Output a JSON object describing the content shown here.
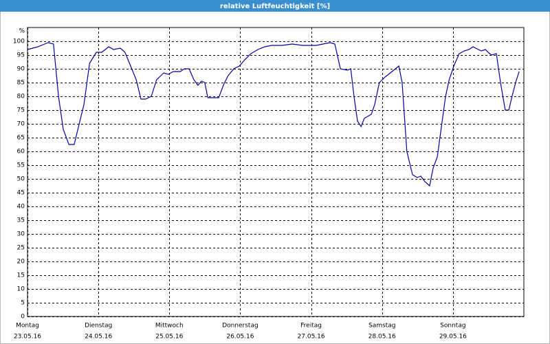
{
  "chart_data": {
    "type": "line",
    "title": "relative Luftfeuchtigkeit [%]",
    "y_unit": "%",
    "xlim": [
      0,
      168
    ],
    "ylim": [
      0,
      100
    ],
    "xticks": [
      {
        "value": 0,
        "label": "Montag"
      },
      {
        "value": 24,
        "label": "Dienstag"
      },
      {
        "value": 48,
        "label": "Mittwoch"
      },
      {
        "value": 72,
        "label": "Donnerstag"
      },
      {
        "value": 96,
        "label": "Freitag"
      },
      {
        "value": 120,
        "label": "Samstag"
      },
      {
        "value": 144,
        "label": "Sonntag"
      }
    ],
    "xtick_dates": [
      "23.05.16",
      "24.05.16",
      "25.05.16",
      "26.05.16",
      "27.05.16",
      "28.05.16",
      "29.05.16"
    ],
    "yticks": [
      0,
      5,
      10,
      15,
      20,
      25,
      30,
      35,
      40,
      45,
      50,
      55,
      60,
      65,
      70,
      75,
      80,
      85,
      90,
      95,
      100
    ],
    "grid": true,
    "series": [
      {
        "name": "relative Luftfeuchtigkeit",
        "color": "#0000a0",
        "x": [
          0,
          3.5,
          5.8,
          7.0,
          8.8,
          10.5,
          12.1,
          14.0,
          15.8,
          17.5,
          19.1,
          21.0,
          23.3,
          25.1,
          27.5,
          29.1,
          31.4,
          33.0,
          34.9,
          36.8,
          38.4,
          40.0,
          41.9,
          43.7,
          46.1,
          47.7,
          49.3,
          51.7,
          53.1,
          54.7,
          56.3,
          57.7,
          58.9,
          60.0,
          61.0,
          62.8,
          64.7,
          66.3,
          67.9,
          69.8,
          71.7,
          73.3,
          75.6,
          78.0,
          80.3,
          82.6,
          86.1,
          89.6,
          93.1,
          97.7,
          100.0,
          102.4,
          104.0,
          105.9,
          108.2,
          109.4,
          110.5,
          111.7,
          112.9,
          114.0,
          116.4,
          117.5,
          119.1,
          121.0,
          122.2,
          124.5,
          125.7,
          126.8,
          128.4,
          130.3,
          131.9,
          133.1,
          134.5,
          136.1,
          137.3,
          138.7,
          139.6,
          141.5,
          142.7,
          144.3,
          146.1,
          147.8,
          149.4,
          150.8,
          151.7,
          153.6,
          155.0,
          155.9,
          157.0,
          158.7,
          160.1,
          161.7,
          162.9,
          164.0,
          165.2,
          166.4
        ],
        "values": [
          97,
          98,
          99,
          99.5,
          99,
          80,
          68,
          62.5,
          62.5,
          70,
          77,
          92,
          96,
          96,
          98,
          97,
          97.5,
          96,
          91,
          86,
          79,
          79,
          80,
          86,
          88.5,
          88,
          89,
          89,
          90,
          90,
          86,
          84,
          85.5,
          85,
          79.5,
          79.5,
          79.5,
          84,
          87.5,
          90,
          91,
          93,
          95.5,
          97,
          98,
          98.5,
          98.5,
          99,
          98.5,
          98.5,
          99,
          99.5,
          99,
          90,
          89.5,
          90,
          80,
          71,
          69,
          72,
          73.5,
          77,
          85,
          87,
          88,
          90,
          91,
          85,
          60,
          51.5,
          50.5,
          51,
          49,
          47.5,
          54,
          58,
          65,
          80,
          86,
          91,
          95.5,
          96.5,
          97,
          98,
          97.5,
          96.5,
          97,
          96,
          95,
          95.5,
          85,
          75,
          75,
          80,
          85,
          89
        ]
      }
    ]
  }
}
